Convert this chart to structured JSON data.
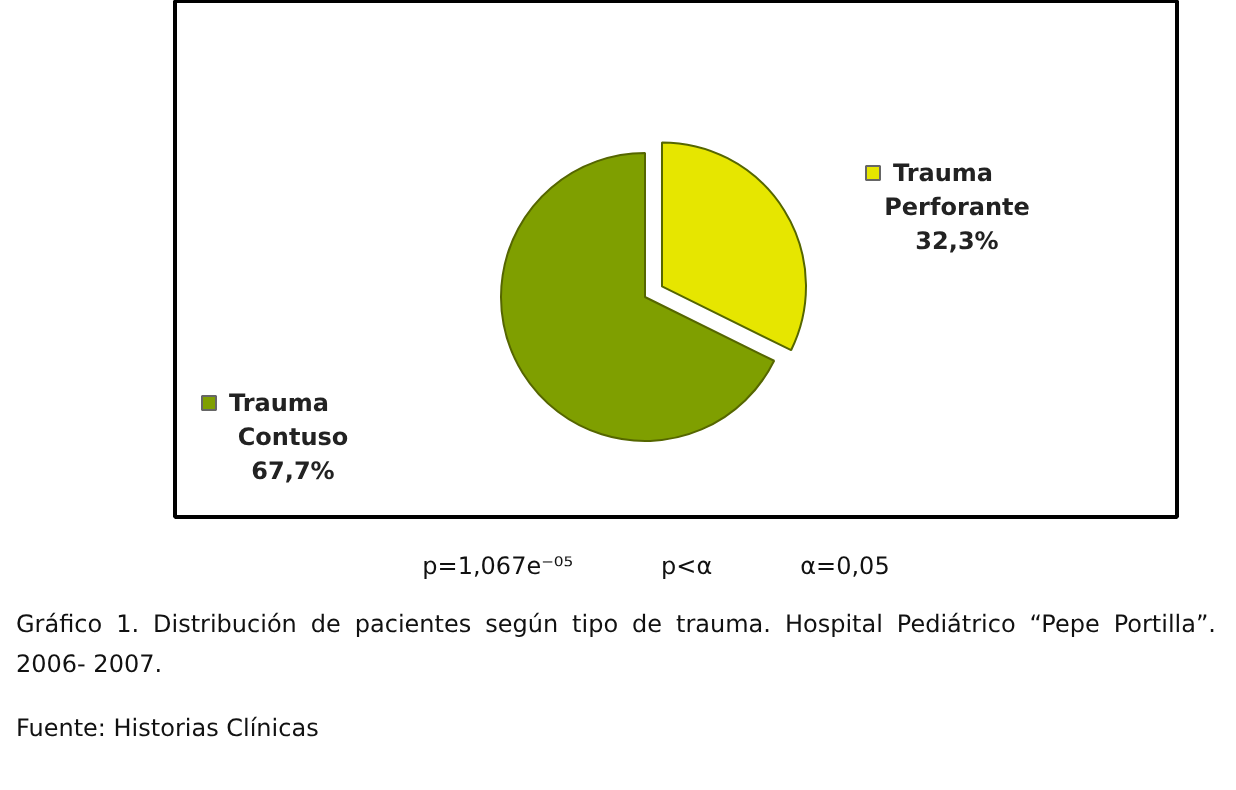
{
  "chart_data": {
    "type": "pie",
    "categories": [
      "Trauma Perforante",
      "Trauma Contuso"
    ],
    "values": [
      32.3,
      67.7
    ],
    "colors": [
      "#e6e600",
      "#7f9f00"
    ],
    "value_labels": [
      "32,3%",
      "67,7%"
    ],
    "legend": "bottom left",
    "annotations": [
      "p=1,067e⁻⁰⁵",
      "p<α",
      "α=0,05",
      "Gráfico 1. Distribución de pacientes según tipo de trauma. Hospital Pediátrico “Pepe Portilla”. 2006- 2007.",
      "Fuente: Historias Clínicas"
    ]
  }
}
